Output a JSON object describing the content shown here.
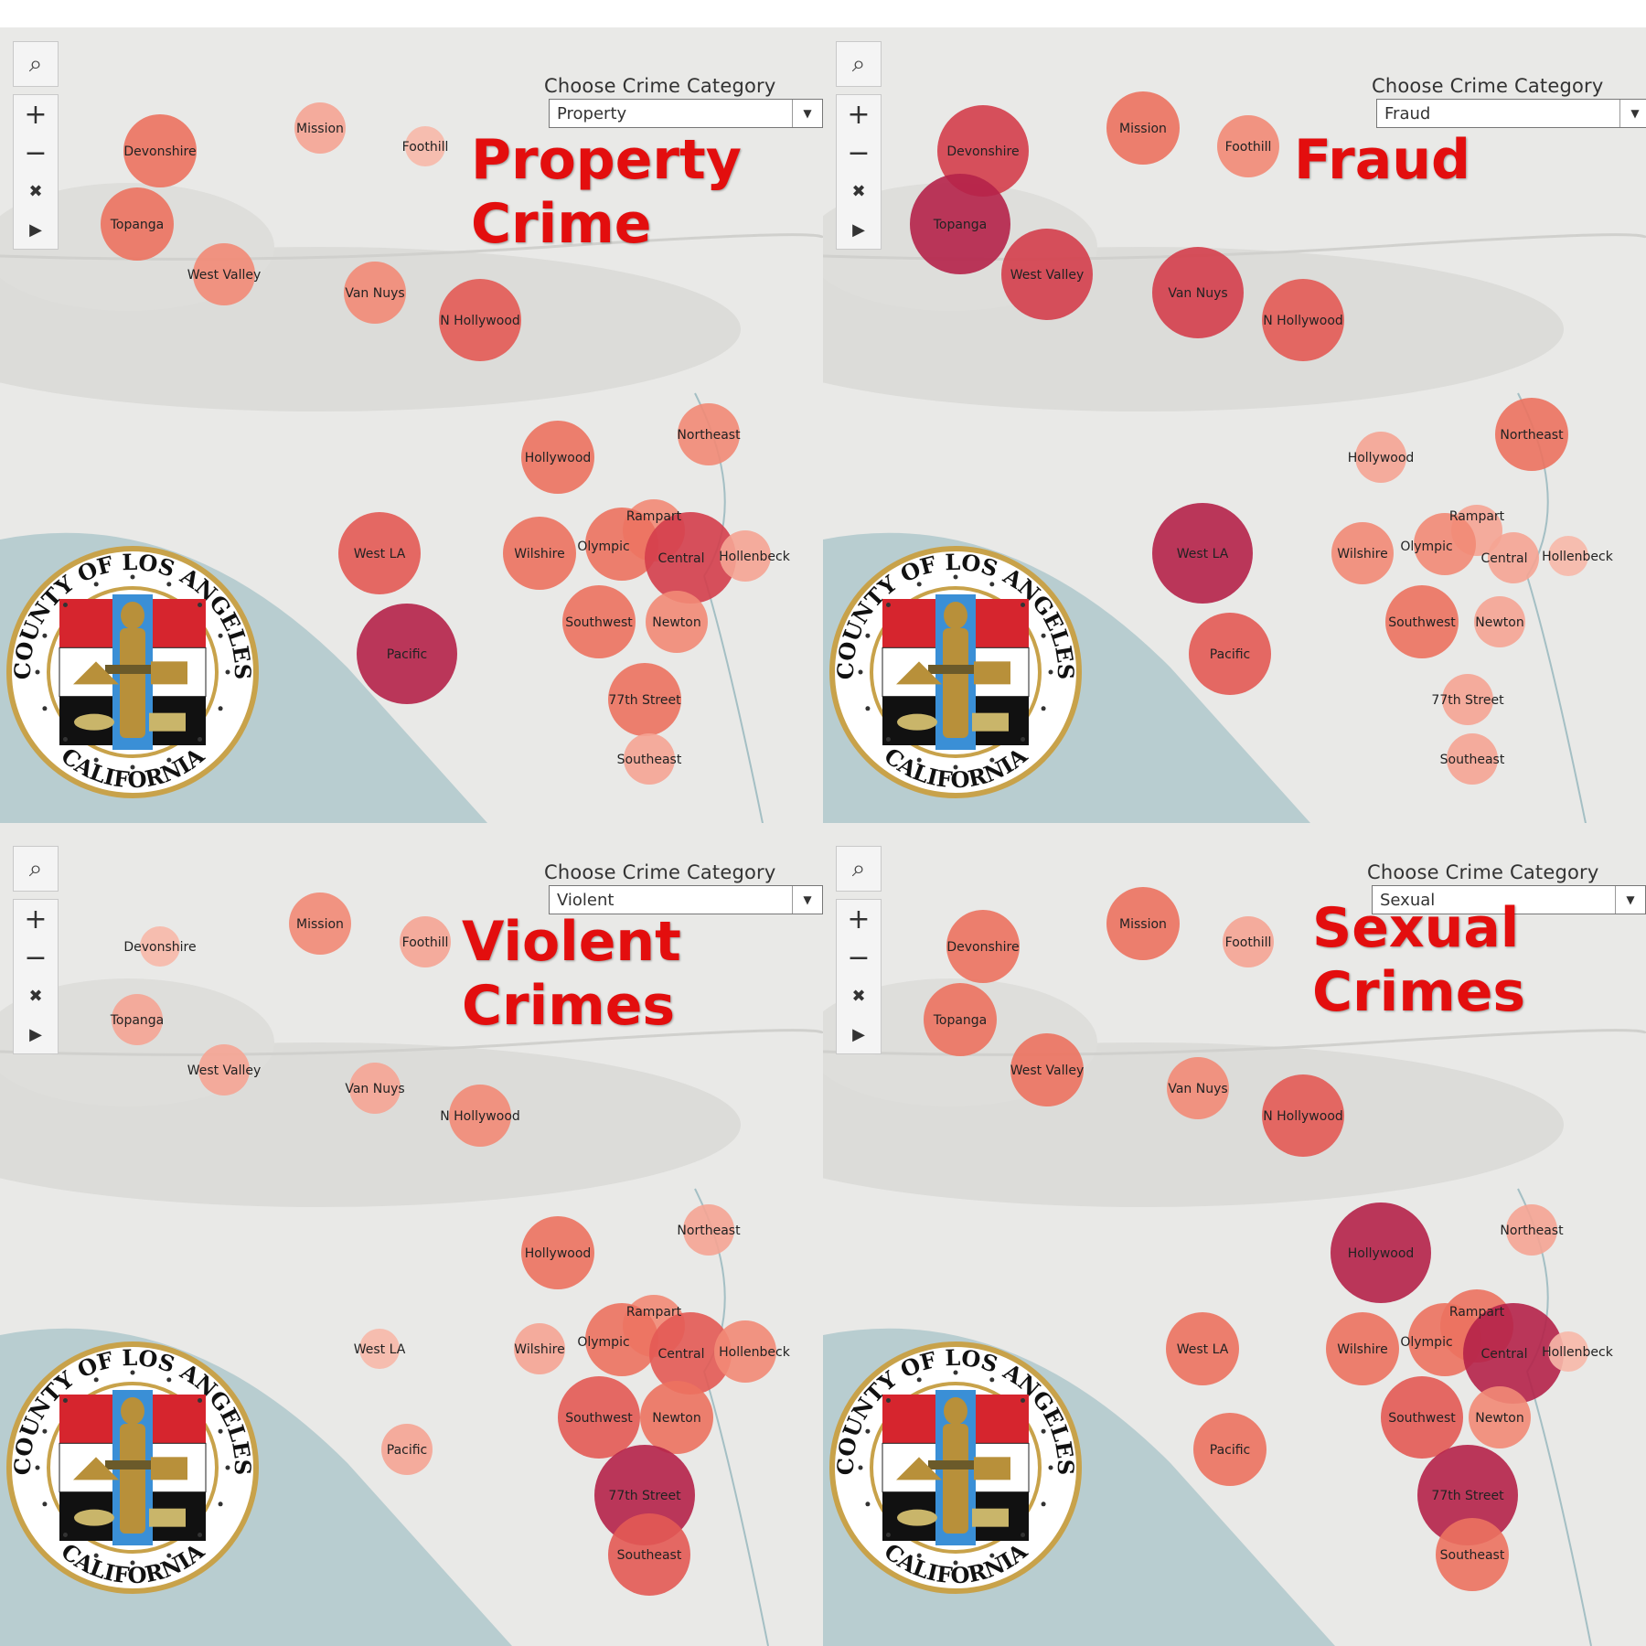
{
  "panels": [
    {
      "id": "property",
      "dropdown_label": "Choose Crime Category",
      "dropdown_value": "Property",
      "headline": [
        "Property",
        "Crime"
      ]
    },
    {
      "id": "fraud",
      "dropdown_label": "Choose Crime Category",
      "dropdown_value": "Fraud",
      "headline": [
        "Fraud"
      ]
    },
    {
      "id": "violent",
      "dropdown_label": "Choose Crime Category",
      "dropdown_value": "Violent",
      "headline": [
        "Violent",
        "Crimes"
      ]
    },
    {
      "id": "sexual",
      "dropdown_label": "Choose Crime Category",
      "dropdown_value": "Sexual",
      "headline": [
        "Sexual",
        "Crimes"
      ]
    }
  ],
  "seal": {
    "top_text": "COUNTY OF LOS ANGELES",
    "bottom_text": "CALIFORNIA"
  },
  "toolbar_icons": [
    "search-icon",
    "zoom-in-icon",
    "zoom-out-icon",
    "unpin-icon",
    "play-icon"
  ],
  "colors": {
    "low": "#f7b2a2",
    "mid_low": "#f28a76",
    "mid": "#eb6a5b",
    "high": "#d83a4b",
    "very_high": "#b01e4c",
    "title_red": "#e30e0e"
  },
  "district_names": [
    "Devonshire",
    "Mission",
    "Foothill",
    "Topanga",
    "West Valley",
    "Van Nuys",
    "N Hollywood",
    "Northeast",
    "Hollywood",
    "West LA",
    "Wilshire",
    "Rampart",
    "Olympic",
    "Central",
    "Hollenbeck",
    "Pacific",
    "Southwest",
    "Newton",
    "77th Street",
    "Southeast"
  ],
  "bubble_levels": {
    "property": [
      3,
      1,
      0,
      3,
      2,
      2,
      4,
      2,
      3,
      4,
      3,
      2,
      3,
      5,
      1,
      6,
      3,
      2,
      3,
      1
    ],
    "fraud": [
      5,
      3,
      2,
      6,
      5,
      5,
      4,
      3,
      1,
      6,
      2,
      1,
      2,
      1,
      0,
      4,
      3,
      1,
      1,
      1
    ],
    "violent": [
      0,
      2,
      1,
      1,
      1,
      1,
      2,
      1,
      3,
      0,
      1,
      2,
      3,
      4,
      2,
      1,
      4,
      3,
      6,
      4
    ],
    "sexual": [
      3,
      3,
      1,
      3,
      3,
      2,
      4,
      1,
      6,
      3,
      3,
      3,
      3,
      6,
      0,
      3,
      4,
      2,
      6,
      3
    ]
  }
}
